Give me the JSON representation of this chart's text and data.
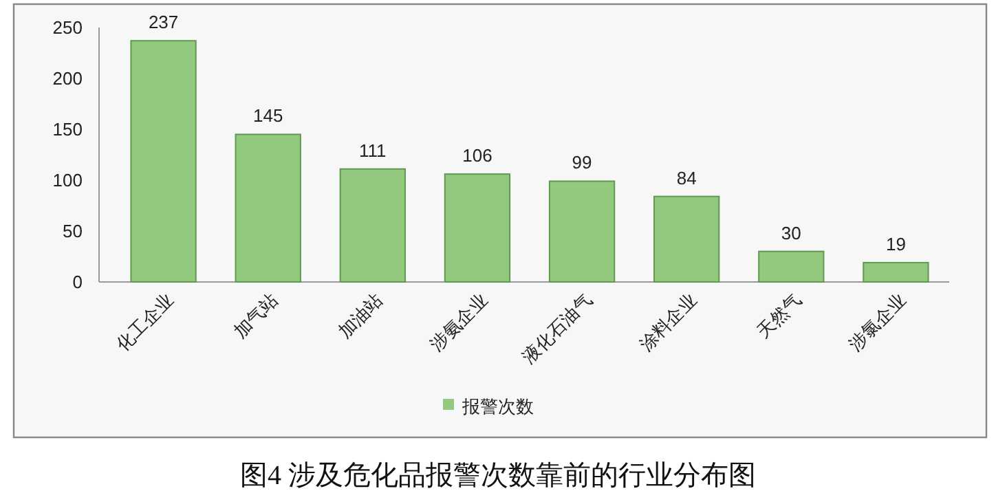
{
  "chart_data": {
    "type": "bar",
    "title": "图4  涉及危化品报警次数靠前的行业分布图",
    "categories": [
      "化工企业",
      "加气站",
      "加油站",
      "涉氨企业",
      "液化石油气",
      "涂料企业",
      "天然气",
      "涉氯企业"
    ],
    "series": [
      {
        "name": "报警次数",
        "color": "#92c97f",
        "values": [
          237,
          145,
          111,
          106,
          99,
          84,
          30,
          19
        ]
      }
    ],
    "ylim": [
      0,
      250
    ],
    "yticks": [
      0,
      50,
      100,
      150,
      200,
      250
    ],
    "grid": false,
    "legend": "bottom",
    "data_labels": true
  }
}
